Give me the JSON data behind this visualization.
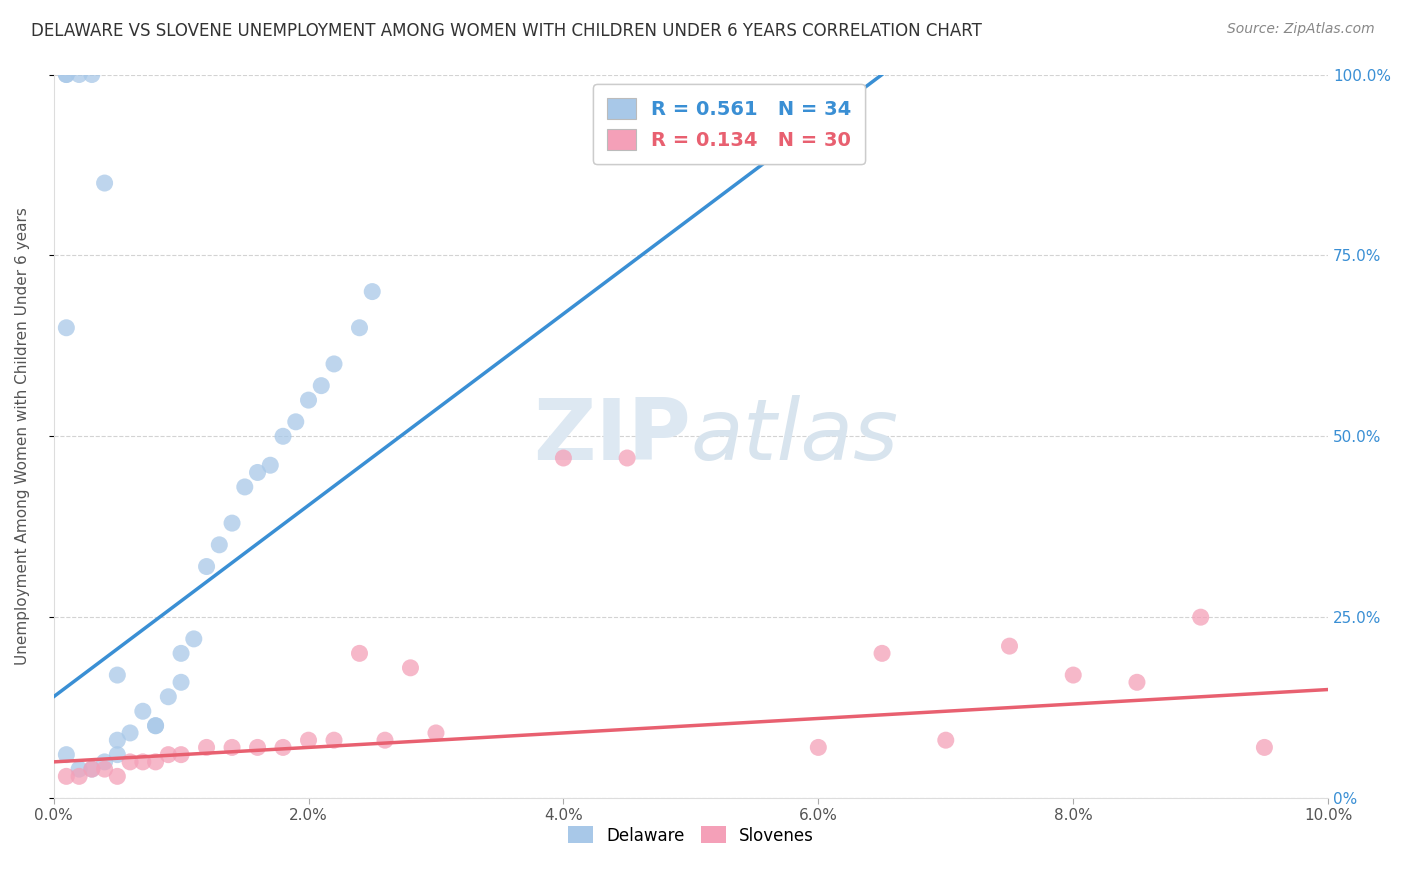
{
  "title": "DELAWARE VS SLOVENE UNEMPLOYMENT AMONG WOMEN WITH CHILDREN UNDER 6 YEARS CORRELATION CHART",
  "source": "Source: ZipAtlas.com",
  "ylabel": "Unemployment Among Women with Children Under 6 years",
  "xlim": [
    0.0,
    0.1
  ],
  "ylim": [
    0.0,
    1.0
  ],
  "xtick_labels": [
    "0.0%",
    "2.0%",
    "4.0%",
    "6.0%",
    "8.0%",
    "10.0%"
  ],
  "xtick_vals": [
    0.0,
    0.02,
    0.04,
    0.06,
    0.08,
    0.1
  ],
  "ytick_vals": [
    0.0,
    0.25,
    0.5,
    0.75,
    1.0
  ],
  "ytick_labels_right": [
    "0%",
    "25.0%",
    "50.0%",
    "75.0%",
    "100.0%"
  ],
  "delaware_R": 0.561,
  "delaware_N": 34,
  "slovene_R": 0.134,
  "slovene_N": 30,
  "delaware_color": "#a8c8e8",
  "slovene_color": "#f4a0b8",
  "delaware_line_color": "#3a8fd4",
  "slovene_line_color": "#e86070",
  "background_color": "#ffffff",
  "grid_color": "#c8c8c8",
  "title_color": "#333333",
  "watermark_color": "#dde8f2",
  "delaware_x": [
    0.001,
    0.002,
    0.003,
    0.004,
    0.005,
    0.005,
    0.006,
    0.007,
    0.008,
    0.008,
    0.009,
    0.01,
    0.01,
    0.011,
    0.012,
    0.013,
    0.014,
    0.015,
    0.016,
    0.017,
    0.018,
    0.019,
    0.02,
    0.021,
    0.022,
    0.024,
    0.025,
    0.001,
    0.001,
    0.001,
    0.002,
    0.003,
    0.004,
    0.005
  ],
  "delaware_y": [
    0.06,
    0.04,
    0.04,
    0.05,
    0.08,
    0.06,
    0.09,
    0.12,
    0.1,
    0.1,
    0.14,
    0.16,
    0.2,
    0.22,
    0.32,
    0.35,
    0.38,
    0.43,
    0.45,
    0.46,
    0.5,
    0.52,
    0.55,
    0.57,
    0.6,
    0.65,
    0.7,
    0.65,
    1.0,
    1.0,
    1.0,
    1.0,
    0.85,
    0.17
  ],
  "slovene_x": [
    0.001,
    0.002,
    0.003,
    0.004,
    0.005,
    0.006,
    0.007,
    0.008,
    0.009,
    0.01,
    0.012,
    0.014,
    0.016,
    0.018,
    0.02,
    0.022,
    0.024,
    0.026,
    0.028,
    0.03,
    0.04,
    0.045,
    0.06,
    0.065,
    0.07,
    0.075,
    0.08,
    0.085,
    0.09,
    0.095
  ],
  "slovene_y": [
    0.03,
    0.03,
    0.04,
    0.04,
    0.03,
    0.05,
    0.05,
    0.05,
    0.06,
    0.06,
    0.07,
    0.07,
    0.07,
    0.07,
    0.08,
    0.08,
    0.2,
    0.08,
    0.18,
    0.09,
    0.47,
    0.47,
    0.07,
    0.2,
    0.08,
    0.21,
    0.17,
    0.16,
    0.25,
    0.07
  ],
  "delaware_line_x": [
    0.0,
    0.065
  ],
  "delaware_line_y": [
    0.14,
    1.0
  ],
  "slovene_line_x": [
    0.0,
    0.1
  ],
  "slovene_line_y": [
    0.05,
    0.15
  ]
}
